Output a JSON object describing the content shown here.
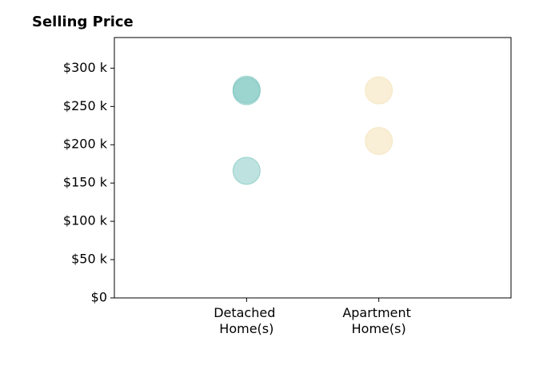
{
  "chart_data": {
    "type": "scatter",
    "title": "Selling Price",
    "categories": [
      "Detached Home(s)",
      "Apartment Home(s)"
    ],
    "colors": [
      "#7cc6bf",
      "#f3dfb0"
    ],
    "series": [
      {
        "values": [
          272000,
          271000
        ]
      },
      {
        "values": [
          270000,
          205000
        ]
      },
      {
        "values": [
          166000,
          null
        ]
      }
    ],
    "ylim": [
      0,
      340000
    ],
    "yticks": [
      {
        "value": 0,
        "label": "$0"
      },
      {
        "value": 50000,
        "label": "$50 k"
      },
      {
        "value": 100000,
        "label": "$100 k"
      },
      {
        "value": 150000,
        "label": "$150 k"
      },
      {
        "value": 200000,
        "label": "$200 k"
      },
      {
        "value": 250000,
        "label": "$250 k"
      },
      {
        "value": 300000,
        "label": "$300 k"
      }
    ]
  }
}
